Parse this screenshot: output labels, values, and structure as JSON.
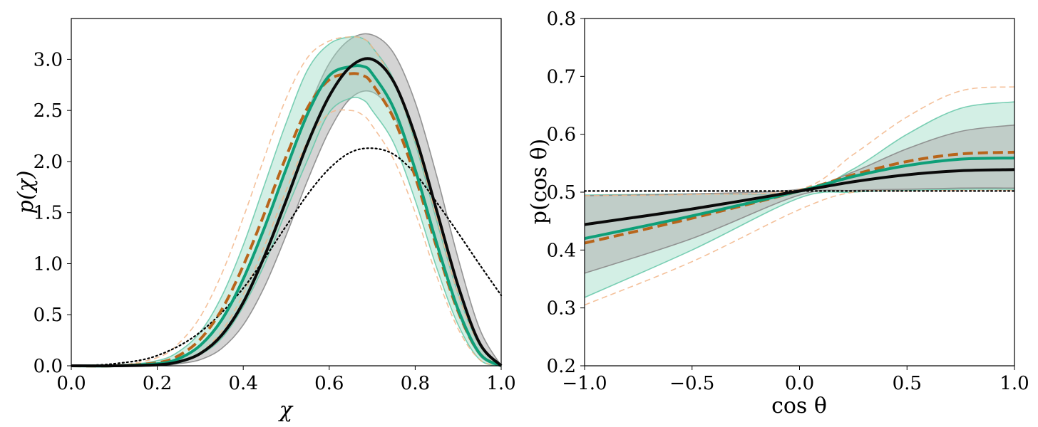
{
  "chart_data": [
    {
      "type": "line",
      "xlabel": "χ",
      "ylabel": "p(χ)",
      "xlim": [
        0.0,
        1.0
      ],
      "ylim": [
        0.0,
        3.4
      ],
      "xticks": [
        "0.0",
        "0.2",
        "0.4",
        "0.6",
        "0.8",
        "1.0"
      ],
      "yticks": [
        "0.0",
        "0.5",
        "1.0",
        "1.5",
        "2.0",
        "2.5",
        "3.0"
      ],
      "xtick_values": [
        0.0,
        0.2,
        0.4,
        0.6,
        0.8,
        1.0
      ],
      "ytick_values": [
        0.0,
        0.5,
        1.0,
        1.5,
        2.0,
        2.5,
        3.0
      ],
      "colors": {
        "black": "#0a0a0a",
        "green": "#0e9f78",
        "orange": "#b8651b",
        "orange_light": "#f2b68a",
        "gray_band": "#b0b0b0",
        "green_band": "#9ddcc6"
      },
      "series": [
        {
          "name": "black-solid",
          "style": "solid",
          "x": [
            0.0,
            0.1,
            0.2,
            0.25,
            0.3,
            0.35,
            0.4,
            0.45,
            0.5,
            0.55,
            0.6,
            0.65,
            0.7,
            0.75,
            0.8,
            0.85,
            0.9,
            0.95,
            1.0
          ],
          "y": [
            0.0,
            0.0,
            0.01,
            0.04,
            0.12,
            0.3,
            0.62,
            1.08,
            1.62,
            2.18,
            2.64,
            2.93,
            3.0,
            2.78,
            2.25,
            1.52,
            0.78,
            0.22,
            0.0
          ]
        },
        {
          "name": "green-solid",
          "style": "solid",
          "x": [
            0.0,
            0.1,
            0.2,
            0.25,
            0.3,
            0.35,
            0.4,
            0.45,
            0.5,
            0.55,
            0.6,
            0.65,
            0.68,
            0.7,
            0.75,
            0.8,
            0.85,
            0.9,
            0.95,
            1.0
          ],
          "y": [
            0.0,
            0.0,
            0.02,
            0.07,
            0.2,
            0.45,
            0.85,
            1.36,
            1.93,
            2.47,
            2.84,
            2.93,
            2.93,
            2.86,
            2.52,
            1.92,
            1.2,
            0.55,
            0.12,
            0.0
          ]
        },
        {
          "name": "orange-dashed",
          "style": "dashed",
          "x": [
            0.0,
            0.1,
            0.2,
            0.25,
            0.3,
            0.35,
            0.4,
            0.45,
            0.5,
            0.55,
            0.6,
            0.65,
            0.68,
            0.7,
            0.75,
            0.8,
            0.85,
            0.9,
            0.95,
            1.0
          ],
          "y": [
            0.0,
            0.0,
            0.03,
            0.1,
            0.26,
            0.55,
            0.98,
            1.5,
            2.05,
            2.53,
            2.8,
            2.86,
            2.84,
            2.76,
            2.42,
            1.85,
            1.16,
            0.53,
            0.12,
            0.0
          ]
        },
        {
          "name": "black-dotted",
          "style": "dotted",
          "x": [
            0.0,
            0.1,
            0.2,
            0.3,
            0.4,
            0.5,
            0.55,
            0.6,
            0.65,
            0.7,
            0.75,
            0.8,
            0.85,
            0.9,
            0.95,
            1.0
          ],
          "y": [
            0.0,
            0.02,
            0.1,
            0.33,
            0.76,
            1.37,
            1.68,
            1.93,
            2.09,
            2.13,
            2.07,
            1.88,
            1.6,
            1.3,
            0.99,
            0.69
          ]
        }
      ],
      "bands": [
        {
          "name": "gray-band",
          "x": [
            0.0,
            0.1,
            0.2,
            0.25,
            0.3,
            0.35,
            0.4,
            0.45,
            0.5,
            0.55,
            0.6,
            0.65,
            0.7,
            0.75,
            0.8,
            0.85,
            0.9,
            0.95,
            1.0
          ],
          "upper": [
            0.0,
            0.0,
            0.02,
            0.08,
            0.2,
            0.45,
            0.85,
            1.38,
            1.95,
            2.5,
            2.96,
            3.2,
            3.24,
            3.06,
            2.58,
            1.86,
            1.05,
            0.36,
            0.0
          ],
          "lower": [
            0.0,
            0.0,
            0.0,
            0.02,
            0.06,
            0.17,
            0.4,
            0.78,
            1.28,
            1.82,
            2.3,
            2.62,
            2.68,
            2.45,
            1.92,
            1.2,
            0.52,
            0.1,
            0.0
          ]
        },
        {
          "name": "green-band",
          "x": [
            0.0,
            0.1,
            0.2,
            0.25,
            0.3,
            0.35,
            0.4,
            0.45,
            0.5,
            0.55,
            0.6,
            0.65,
            0.68,
            0.7,
            0.75,
            0.8,
            0.85,
            0.9,
            0.95,
            1.0
          ],
          "upper": [
            0.0,
            0.0,
            0.05,
            0.14,
            0.33,
            0.68,
            1.18,
            1.78,
            2.38,
            2.9,
            3.15,
            3.22,
            3.2,
            3.12,
            2.8,
            2.18,
            1.42,
            0.7,
            0.2,
            0.0
          ],
          "lower": [
            0.0,
            0.0,
            0.01,
            0.03,
            0.11,
            0.27,
            0.58,
            1.0,
            1.52,
            2.02,
            2.48,
            2.62,
            2.6,
            2.5,
            2.18,
            1.62,
            0.96,
            0.4,
            0.06,
            0.0
          ]
        },
        {
          "name": "orange-band-edges",
          "x": [
            0.0,
            0.1,
            0.2,
            0.25,
            0.3,
            0.35,
            0.4,
            0.45,
            0.5,
            0.55,
            0.6,
            0.65,
            0.68,
            0.7,
            0.75,
            0.8,
            0.85,
            0.9,
            0.95,
            1.0
          ],
          "upper": [
            0.0,
            0.0,
            0.08,
            0.22,
            0.48,
            0.9,
            1.45,
            2.05,
            2.62,
            3.02,
            3.18,
            3.22,
            3.2,
            3.12,
            2.78,
            2.2,
            1.45,
            0.7,
            0.2,
            0.0
          ],
          "lower": [
            0.0,
            0.0,
            0.01,
            0.04,
            0.13,
            0.34,
            0.7,
            1.18,
            1.72,
            2.2,
            2.47,
            2.5,
            2.45,
            2.35,
            2.02,
            1.5,
            0.88,
            0.36,
            0.06,
            0.0
          ]
        }
      ]
    },
    {
      "type": "line",
      "xlabel": "cos θ",
      "ylabel": "p(cos θ)",
      "xlim": [
        -1.0,
        1.0
      ],
      "ylim": [
        0.2,
        0.8
      ],
      "xticks": [
        "−1.0",
        "−0.5",
        "0.0",
        "0.5",
        "1.0"
      ],
      "yticks": [
        "0.2",
        "0.3",
        "0.4",
        "0.5",
        "0.6",
        "0.7",
        "0.8"
      ],
      "xtick_values": [
        -1.0,
        -0.5,
        0.0,
        0.5,
        1.0
      ],
      "ytick_values": [
        0.2,
        0.3,
        0.4,
        0.5,
        0.6,
        0.7,
        0.8
      ],
      "series": [
        {
          "name": "black-solid",
          "style": "solid",
          "x": [
            -1.0,
            -0.5,
            0.0,
            0.25,
            0.5,
            0.75,
            1.0
          ],
          "y": [
            0.444,
            0.471,
            0.502,
            0.518,
            0.53,
            0.537,
            0.539
          ]
        },
        {
          "name": "green-solid",
          "style": "solid",
          "x": [
            -1.0,
            -0.5,
            0.0,
            0.25,
            0.5,
            0.75,
            1.0
          ],
          "y": [
            0.42,
            0.459,
            0.502,
            0.527,
            0.546,
            0.557,
            0.559
          ]
        },
        {
          "name": "orange-dashed",
          "style": "dashed",
          "x": [
            -1.0,
            -0.5,
            0.0,
            0.25,
            0.5,
            0.75,
            1.0
          ],
          "y": [
            0.412,
            0.455,
            0.502,
            0.53,
            0.553,
            0.566,
            0.569
          ]
        },
        {
          "name": "black-dotted",
          "style": "dotted",
          "x": [
            -1.0,
            1.0
          ],
          "y": [
            0.502,
            0.502
          ]
        }
      ],
      "bands": [
        {
          "name": "green-band",
          "x": [
            -1.0,
            -0.5,
            0.0,
            0.25,
            0.5,
            0.75,
            1.0
          ],
          "upper": [
            0.495,
            0.497,
            0.5,
            0.54,
            0.6,
            0.645,
            0.656
          ],
          "lower": [
            0.318,
            0.4,
            0.49,
            0.5,
            0.503,
            0.505,
            0.505
          ]
        },
        {
          "name": "gray-band",
          "x": [
            -1.0,
            -0.5,
            0.0,
            0.25,
            0.5,
            0.75,
            1.0
          ],
          "upper": [
            0.494,
            0.497,
            0.505,
            0.535,
            0.575,
            0.605,
            0.616
          ],
          "lower": [
            0.36,
            0.42,
            0.495,
            0.503,
            0.505,
            0.507,
            0.507
          ]
        },
        {
          "name": "orange-band-edges",
          "x": [
            -1.0,
            -0.5,
            0.0,
            0.25,
            0.5,
            0.75,
            1.0
          ],
          "upper": [
            0.494,
            0.496,
            0.505,
            0.565,
            0.63,
            0.675,
            0.682
          ],
          "lower": [
            0.305,
            0.38,
            0.47,
            0.5,
            0.502,
            0.503,
            0.503
          ]
        }
      ]
    }
  ]
}
